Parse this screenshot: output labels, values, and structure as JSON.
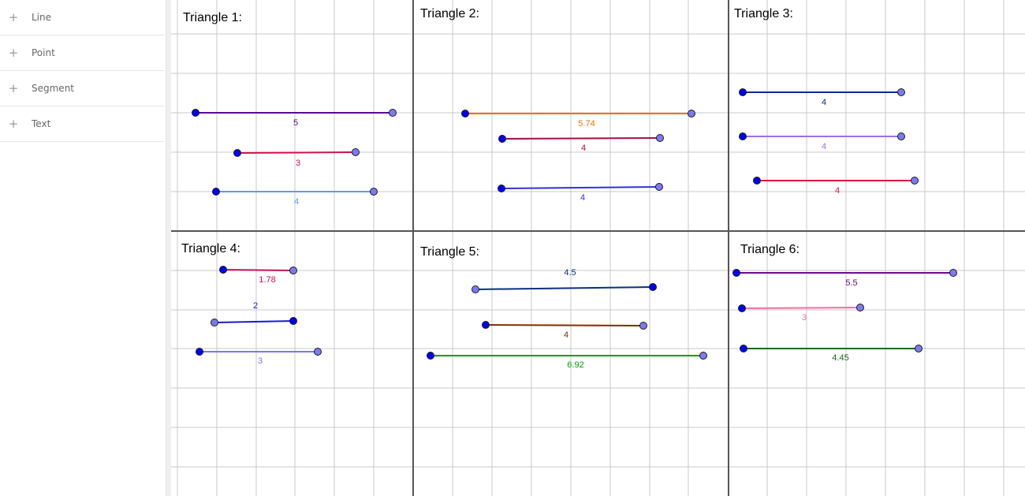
{
  "tools": [
    {
      "label": "Line",
      "icon": "plus-icon"
    },
    {
      "label": "Point",
      "icon": "plus-icon"
    },
    {
      "label": "Segment",
      "icon": "plus-icon"
    },
    {
      "label": "Text",
      "icon": "plus-icon"
    }
  ],
  "colors": {
    "grid": "#c8c8c8",
    "divider": "#555555",
    "point_dark": "#0000ee",
    "point_light": "#7b7bf0"
  },
  "panels": [
    {
      "title": "Triangle 1:",
      "segments": [
        {
          "label": "5",
          "color": "#5a0a8c"
        },
        {
          "label": "3",
          "color": "#d0104a"
        },
        {
          "label": "4",
          "color": "#5b9bf0"
        }
      ]
    },
    {
      "title": "Triangle 2:",
      "segments": [
        {
          "label": "5.74",
          "color": "#f07000"
        },
        {
          "label": "4",
          "color": "#a0103c"
        },
        {
          "label": "4",
          "color": "#3030e0"
        }
      ]
    },
    {
      "title": "Triangle 3:",
      "segments": [
        {
          "label": "4",
          "color": "#0a2a8c"
        },
        {
          "label": "4",
          "color": "#9b6fe8"
        },
        {
          "label": "4",
          "color": "#e0103a"
        }
      ]
    },
    {
      "title": "Triangle 4:",
      "segments": [
        {
          "label": "1.78",
          "color": "#cc1050"
        },
        {
          "label": "2",
          "color": "#1a1ad0"
        },
        {
          "label": "3",
          "color": "#7a7ae0"
        }
      ]
    },
    {
      "title": "Triangle 5:",
      "segments": [
        {
          "label": "4.5",
          "color": "#0a3080"
        },
        {
          "label": "4",
          "color": "#8a2a00"
        },
        {
          "label": "6.92",
          "color": "#00a000"
        }
      ]
    },
    {
      "title": "Triangle 6:",
      "segments": [
        {
          "label": "5.5",
          "color": "#6a0a8c"
        },
        {
          "label": "3",
          "color": "#ef6fa8"
        },
        {
          "label": "4.45",
          "color": "#1a6a1a"
        }
      ]
    }
  ]
}
